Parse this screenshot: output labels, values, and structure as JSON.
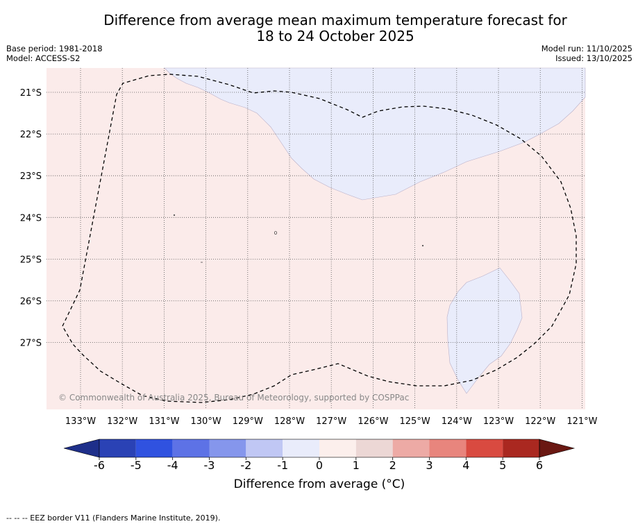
{
  "title": {
    "line1": "Difference from average mean maximum temperature forecast for",
    "line2": "18 to 24 October 2025"
  },
  "meta": {
    "base_period": "Base period: 1981-2018",
    "model": "Model: ACCESS-S2",
    "model_run": "Model run: 11/10/2025",
    "issued": "Issued: 13/10/2025"
  },
  "map": {
    "lon_labels": [
      "133°W",
      "132°W",
      "131°W",
      "130°W",
      "129°W",
      "128°W",
      "127°W",
      "126°W",
      "125°W",
      "124°W",
      "123°W",
      "122°W",
      "121°W"
    ],
    "lat_labels": [
      "21°S",
      "22°S",
      "23°S",
      "24°S",
      "25°S",
      "26°S",
      "27°S"
    ],
    "copyright": "© Commonwealth of Australia 2025, Bureau of Meteorology, supported by COSPPac",
    "colors": {
      "warm_0_1": "#fbebea",
      "cool_m1_0": "#e9ecfb",
      "grid": "#555555",
      "eez": "#000000"
    }
  },
  "colorbar": {
    "ticks": [
      "-6",
      "-5",
      "-4",
      "-3",
      "-2",
      "-1",
      "0",
      "1",
      "2",
      "3",
      "4",
      "5",
      "6"
    ],
    "colors": [
      "#1e2f8a",
      "#2a42b5",
      "#3052e0",
      "#5d72e6",
      "#8596ec",
      "#c0c7f4",
      "#e9ecfb",
      "#fcefec",
      "#ecd7d5",
      "#edaaa5",
      "#e8857d",
      "#d94a40",
      "#aa2820",
      "#6a1812"
    ],
    "title": "Difference from average (°C)"
  },
  "footer": {
    "legend": "--  --  -- EEZ border V11 (Flanders Marine Institute, 2019)."
  }
}
